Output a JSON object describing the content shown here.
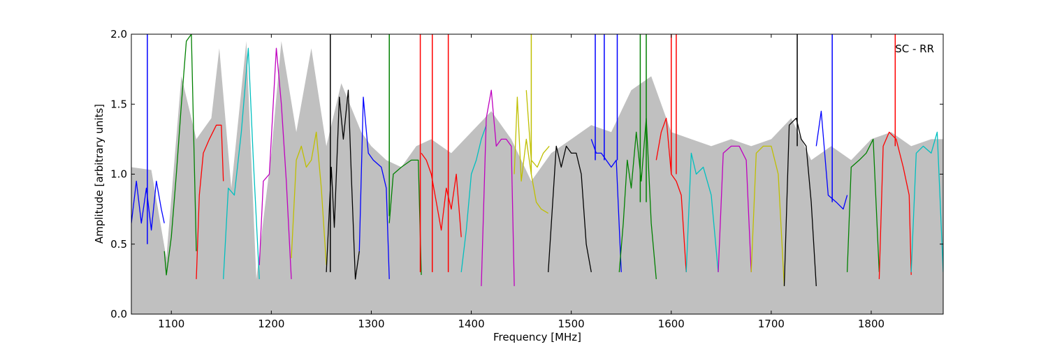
{
  "chart_data": {
    "type": "line",
    "annotation": "SC - RR",
    "xlabel": "Frequency [MHz]",
    "ylabel": "Amplitude [arbitrary units]",
    "xlim": [
      1060,
      1872
    ],
    "ylim": [
      0.0,
      2.0
    ],
    "xticks": [
      1100,
      1200,
      1300,
      1400,
      1500,
      1600,
      1700,
      1800
    ],
    "yticks": [
      0.0,
      0.5,
      1.0,
      1.5,
      2.0
    ],
    "ytick_labels": [
      "0.0",
      "0.5",
      "1.0",
      "1.5",
      "2.0"
    ],
    "grid": false,
    "legend": "none",
    "envelope": {
      "color": "#c0c0c0",
      "x": [
        1060,
        1080,
        1095,
        1110,
        1125,
        1140,
        1148,
        1160,
        1175,
        1185,
        1200,
        1210,
        1225,
        1240,
        1255,
        1270,
        1290,
        1300,
        1315,
        1330,
        1345,
        1360,
        1380,
        1400,
        1420,
        1440,
        1460,
        1480,
        1500,
        1520,
        1540,
        1560,
        1580,
        1600,
        1620,
        1640,
        1660,
        1680,
        1700,
        1720,
        1740,
        1760,
        1780,
        1800,
        1820,
        1840,
        1860,
        1872
      ],
      "y": [
        1.05,
        1.03,
        0.4,
        1.7,
        1.25,
        1.4,
        1.9,
        0.9,
        1.95,
        0.25,
        1.15,
        1.95,
        1.3,
        1.9,
        1.2,
        1.65,
        1.3,
        1.2,
        1.1,
        1.05,
        1.2,
        1.25,
        1.15,
        1.3,
        1.45,
        1.25,
        0.95,
        1.15,
        1.25,
        1.35,
        1.3,
        1.6,
        1.7,
        1.3,
        1.25,
        1.2,
        1.25,
        1.2,
        1.25,
        1.4,
        1.1,
        1.2,
        1.1,
        1.25,
        1.3,
        1.2,
        1.25,
        1.25
      ]
    },
    "series": [
      {
        "color": "#0000ff",
        "x": [
          1060,
          1065,
          1070,
          1075,
          1080,
          1085,
          1090,
          1093
        ],
        "y": [
          0.65,
          0.95,
          0.65,
          0.9,
          0.6,
          0.95,
          0.75,
          0.65
        ]
      },
      {
        "color": "#008000",
        "x": [
          1093,
          1095,
          1100,
          1105,
          1110,
          1115,
          1120,
          1125
        ],
        "y": [
          0.45,
          0.28,
          0.55,
          1.0,
          1.5,
          1.95,
          2.0,
          0.45
        ]
      },
      {
        "color": "#ff0000",
        "x": [
          1125,
          1128,
          1132,
          1138,
          1145,
          1150,
          1152
        ],
        "y": [
          0.25,
          0.85,
          1.15,
          1.25,
          1.35,
          1.35,
          0.95
        ]
      },
      {
        "color": "#00bfbf",
        "x": [
          1152,
          1157,
          1163,
          1170,
          1177,
          1182,
          1188
        ],
        "y": [
          0.25,
          0.9,
          0.85,
          1.3,
          1.9,
          1.1,
          0.25
        ]
      },
      {
        "color": "#bf00bf",
        "x": [
          1188,
          1192,
          1198,
          1205,
          1210,
          1215,
          1220
        ],
        "y": [
          0.35,
          0.95,
          1.0,
          1.9,
          1.5,
          0.95,
          0.25
        ]
      },
      {
        "color": "#bfbf00",
        "x": [
          1220,
          1225,
          1230,
          1235,
          1240,
          1245,
          1250,
          1255
        ],
        "y": [
          0.4,
          1.1,
          1.2,
          1.05,
          1.1,
          1.3,
          0.9,
          0.35
        ]
      },
      {
        "color": "#000000",
        "x": [
          1255,
          1260,
          1263,
          1268,
          1272,
          1277,
          1280,
          1284,
          1288
        ],
        "y": [
          0.3,
          1.05,
          0.62,
          1.55,
          1.25,
          1.6,
          1.0,
          0.25,
          0.45
        ]
      },
      {
        "color": "#0000ff",
        "x": [
          1288,
          1292,
          1297,
          1302,
          1310,
          1315,
          1318
        ],
        "y": [
          0.45,
          1.55,
          1.15,
          1.1,
          1.05,
          0.9,
          0.25
        ]
      },
      {
        "color": "#008000",
        "x": [
          1318,
          1322,
          1330,
          1340,
          1347,
          1350
        ],
        "y": [
          0.65,
          1.0,
          1.05,
          1.1,
          1.1,
          0.28
        ]
      },
      {
        "color": "#ff0000",
        "x": [
          1350,
          1355,
          1360,
          1365,
          1370,
          1375,
          1380,
          1385,
          1390
        ],
        "y": [
          1.15,
          1.1,
          1.0,
          0.8,
          0.6,
          0.9,
          0.75,
          1.0,
          0.55
        ]
      },
      {
        "color": "#00bfbf",
        "x": [
          1390,
          1395,
          1400,
          1405,
          1410,
          1415
        ],
        "y": [
          0.3,
          0.6,
          1.0,
          1.1,
          1.25,
          1.35
        ]
      },
      {
        "color": "#bf00bf",
        "x": [
          1410,
          1415,
          1420,
          1425,
          1430,
          1435,
          1440,
          1443
        ],
        "y": [
          0.2,
          1.4,
          1.6,
          1.2,
          1.25,
          1.25,
          1.2,
          0.2
        ]
      },
      {
        "color": "#bfbf00",
        "x": [
          1443,
          1446,
          1450,
          1455,
          1460,
          1465,
          1470,
          1477
        ],
        "y": [
          1.0,
          1.55,
          0.95,
          1.25,
          1.0,
          0.8,
          0.75,
          0.72
        ]
      },
      {
        "color": "#bfbf00",
        "x": [
          1455,
          1460,
          1466,
          1472,
          1478
        ],
        "y": [
          1.6,
          1.1,
          1.05,
          1.15,
          1.2
        ]
      },
      {
        "color": "#000000",
        "x": [
          1477,
          1485,
          1490,
          1495,
          1500,
          1505,
          1510,
          1515,
          1520
        ],
        "y": [
          0.3,
          1.2,
          1.05,
          1.2,
          1.15,
          1.15,
          1.0,
          0.5,
          0.3
        ]
      },
      {
        "color": "#0000ff",
        "x": [
          1520,
          1525,
          1530,
          1535,
          1540,
          1545,
          1550
        ],
        "y": [
          1.25,
          1.15,
          1.15,
          1.1,
          1.05,
          1.1,
          0.3
        ]
      },
      {
        "color": "#008000",
        "x": [
          1548,
          1552,
          1556,
          1560,
          1565,
          1570,
          1575,
          1580,
          1585
        ],
        "y": [
          0.3,
          0.65,
          1.1,
          0.9,
          1.3,
          0.95,
          1.4,
          0.65,
          0.25
        ]
      },
      {
        "color": "#ff0000",
        "x": [
          1585,
          1590,
          1595,
          1600,
          1605,
          1610,
          1615
        ],
        "y": [
          1.1,
          1.3,
          1.4,
          1.0,
          0.95,
          0.85,
          0.3
        ]
      },
      {
        "color": "#00bfbf",
        "x": [
          1615,
          1620,
          1625,
          1632,
          1640,
          1647
        ],
        "y": [
          0.3,
          1.15,
          1.0,
          1.05,
          0.85,
          0.3
        ]
      },
      {
        "color": "#bf00bf",
        "x": [
          1647,
          1652,
          1660,
          1668,
          1675,
          1680
        ],
        "y": [
          0.3,
          1.15,
          1.2,
          1.2,
          1.1,
          0.3
        ]
      },
      {
        "color": "#bfbf00",
        "x": [
          1680,
          1685,
          1692,
          1700,
          1707,
          1713
        ],
        "y": [
          0.3,
          1.15,
          1.2,
          1.2,
          1.0,
          0.2
        ]
      },
      {
        "color": "#000000",
        "x": [
          1713,
          1718,
          1725,
          1730,
          1735,
          1740,
          1745
        ],
        "y": [
          0.2,
          1.35,
          1.4,
          1.25,
          1.2,
          0.8,
          0.2
        ]
      },
      {
        "color": "#0000ff",
        "x": [
          1745,
          1750,
          1757,
          1765,
          1772,
          1776
        ],
        "y": [
          1.2,
          1.45,
          0.85,
          0.8,
          0.75,
          0.85
        ]
      },
      {
        "color": "#008000",
        "x": [
          1776,
          1780,
          1788,
          1795,
          1802,
          1808
        ],
        "y": [
          0.3,
          1.05,
          1.1,
          1.15,
          1.25,
          0.3
        ]
      },
      {
        "color": "#ff0000",
        "x": [
          1808,
          1812,
          1818,
          1825,
          1832,
          1838,
          1840
        ],
        "y": [
          0.25,
          1.2,
          1.3,
          1.25,
          1.05,
          0.85,
          0.28
        ]
      },
      {
        "color": "#00bfbf",
        "x": [
          1840,
          1845,
          1852,
          1860,
          1866,
          1872
        ],
        "y": [
          0.3,
          1.15,
          1.2,
          1.15,
          1.3,
          0.3
        ]
      }
    ],
    "spikes": [
      {
        "color": "#0000ff",
        "x": 1076,
        "y_from": 0.5,
        "y_to": 2.0
      },
      {
        "color": "#000000",
        "x": 1259,
        "y_from": 0.3,
        "y_to": 2.0
      },
      {
        "color": "#008000",
        "x": 1318,
        "y_from": 0.7,
        "y_to": 2.0
      },
      {
        "color": "#ff0000",
        "x": 1349,
        "y_from": 0.3,
        "y_to": 2.0
      },
      {
        "color": "#ff0000",
        "x": 1361,
        "y_from": 0.3,
        "y_to": 2.0
      },
      {
        "color": "#ff0000",
        "x": 1377,
        "y_from": 0.3,
        "y_to": 2.0
      },
      {
        "color": "#bfbf00",
        "x": 1460,
        "y_from": 1.0,
        "y_to": 2.0
      },
      {
        "color": "#0000ff",
        "x": 1524,
        "y_from": 1.1,
        "y_to": 2.0
      },
      {
        "color": "#0000ff",
        "x": 1533,
        "y_from": 1.1,
        "y_to": 2.0
      },
      {
        "color": "#0000ff",
        "x": 1546,
        "y_from": 1.1,
        "y_to": 2.0
      },
      {
        "color": "#008000",
        "x": 1569,
        "y_from": 0.8,
        "y_to": 2.0
      },
      {
        "color": "#008000",
        "x": 1575,
        "y_from": 0.8,
        "y_to": 2.0
      },
      {
        "color": "#ff0000",
        "x": 1600,
        "y_from": 1.0,
        "y_to": 2.0
      },
      {
        "color": "#ff0000",
        "x": 1605,
        "y_from": 1.0,
        "y_to": 2.0
      },
      {
        "color": "#000000",
        "x": 1726,
        "y_from": 1.2,
        "y_to": 2.0
      },
      {
        "color": "#0000ff",
        "x": 1761,
        "y_from": 0.8,
        "y_to": 2.0
      },
      {
        "color": "#ff0000",
        "x": 1824,
        "y_from": 1.2,
        "y_to": 2.0
      }
    ]
  }
}
